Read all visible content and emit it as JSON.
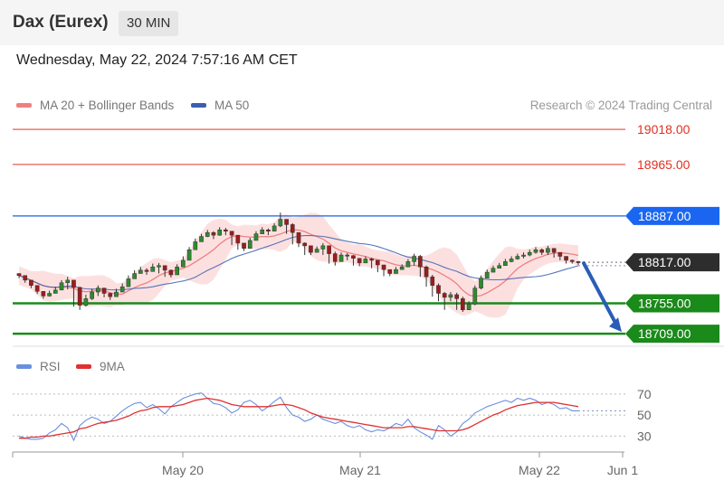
{
  "header": {
    "title": "Dax (Eurex)",
    "interval": "30 MIN"
  },
  "datetime": "Wednesday, May 22, 2024 7:57:16 AM CET",
  "legend": {
    "ma20": {
      "label": "MA 20 + Bollinger Bands",
      "color": "#f08080"
    },
    "ma50": {
      "label": "MA 50",
      "color": "#3a5fb0"
    }
  },
  "research": "Research © 2024 Trading Central",
  "rsi_legend": {
    "rsi": {
      "label": "RSI",
      "color": "#6b8fe0"
    },
    "ma9": {
      "label": "9MA",
      "color": "#e03030"
    }
  },
  "chart_data": [
    {
      "type": "candlestick",
      "title": "Dax (Eurex)",
      "interval": "30 MIN",
      "x_ticks": [
        "May 20",
        "May 21",
        "May 22",
        "Jun 1"
      ],
      "y_range": [
        18690,
        19040
      ],
      "levels": [
        {
          "value": 19018.0,
          "label": "19018.00",
          "kind": "resistance",
          "color": "#e8554e"
        },
        {
          "value": 18965.0,
          "label": "18965.00",
          "kind": "resistance",
          "color": "#e8554e"
        },
        {
          "value": 18887.0,
          "label": "18887.00",
          "kind": "pivot",
          "color": "#1f5fe0"
        },
        {
          "value": 18817.0,
          "label": "18817.00",
          "kind": "last",
          "color": "#333333"
        },
        {
          "value": 18755.0,
          "label": "18755.00",
          "kind": "support",
          "color": "#1a8a1a"
        },
        {
          "value": 18709.0,
          "label": "18709.00",
          "kind": "support",
          "color": "#1a8a1a"
        }
      ],
      "forecast": {
        "direction": "down",
        "target": 18709.0
      },
      "indicators": [
        "MA 20 + Bollinger Bands",
        "MA 50"
      ],
      "close": [
        18797,
        18790,
        18782,
        18773,
        18766,
        18770,
        18775,
        18786,
        18790,
        18779,
        18752,
        18762,
        18772,
        18778,
        18770,
        18765,
        18772,
        18780,
        18792,
        18800,
        18805,
        18803,
        18810,
        18812,
        18805,
        18798,
        18810,
        18820,
        18836,
        18848,
        18856,
        18862,
        18858,
        18866,
        18864,
        18858,
        18846,
        18838,
        18850,
        18860,
        18866,
        18864,
        18872,
        18882,
        18874,
        18862,
        18846,
        18842,
        18832,
        18837,
        18842,
        18830,
        18818,
        18828,
        18827,
        18823,
        18816,
        18822,
        18820,
        18813,
        18806,
        18800,
        18806,
        18810,
        18818,
        18826,
        18810,
        18795,
        18782,
        18770,
        18764,
        18768,
        18762,
        18745,
        18754,
        18778,
        18793,
        18802,
        18808,
        18812,
        18818,
        18822,
        18826,
        18828,
        18832,
        18836,
        18832,
        18838,
        18832,
        18826,
        18820,
        18818,
        18817
      ],
      "high": [
        18800,
        18795,
        18786,
        18778,
        18772,
        18774,
        18780,
        18790,
        18795,
        18790,
        18780,
        18768,
        18777,
        18782,
        18778,
        18771,
        18777,
        18785,
        18797,
        18805,
        18810,
        18808,
        18815,
        18816,
        18810,
        18806,
        18814,
        18826,
        18840,
        18853,
        18860,
        18866,
        18864,
        18870,
        18869,
        18864,
        18856,
        18845,
        18854,
        18864,
        18870,
        18868,
        18876,
        18892,
        18882,
        18876,
        18852,
        18847,
        18840,
        18841,
        18846,
        18842,
        18833,
        18832,
        18831,
        18828,
        18823,
        18826,
        18824,
        18820,
        18812,
        18806,
        18810,
        18814,
        18822,
        18830,
        18828,
        18812,
        18798,
        18785,
        18772,
        18772,
        18771,
        18765,
        18758,
        18782,
        18797,
        18806,
        18812,
        18816,
        18822,
        18826,
        18830,
        18832,
        18836,
        18840,
        18838,
        18842,
        18838,
        18832,
        18826,
        18821,
        18819
      ],
      "low": [
        18793,
        18786,
        18778,
        18769,
        18762,
        18765,
        18770,
        18782,
        18776,
        18750,
        18745,
        18750,
        18760,
        18766,
        18764,
        18760,
        18766,
        18775,
        18788,
        18796,
        18800,
        18798,
        18805,
        18800,
        18795,
        18794,
        18805,
        18816,
        18830,
        18842,
        18850,
        18855,
        18852,
        18857,
        18858,
        18843,
        18836,
        18834,
        18846,
        18856,
        18860,
        18858,
        18866,
        18870,
        18860,
        18844,
        18840,
        18828,
        18828,
        18833,
        18828,
        18815,
        18812,
        18822,
        18820,
        18812,
        18811,
        18816,
        18808,
        18802,
        18796,
        18796,
        18801,
        18806,
        18813,
        18812,
        18795,
        18780,
        18765,
        18758,
        18745,
        18758,
        18745,
        18742,
        18745,
        18752,
        18776,
        18796,
        18802,
        18808,
        18813,
        18817,
        18821,
        18823,
        18826,
        18830,
        18828,
        18828,
        18824,
        18820,
        18815,
        18815,
        18813
      ]
    },
    {
      "type": "line",
      "title": "RSI",
      "series": [
        {
          "name": "RSI",
          "values": [
            30,
            28,
            27,
            27,
            28,
            33,
            36,
            42,
            38,
            26,
            40,
            45,
            48,
            46,
            42,
            44,
            49,
            54,
            58,
            61,
            62,
            57,
            60,
            56,
            51,
            58,
            62,
            66,
            68,
            70,
            71,
            66,
            61,
            60,
            57,
            52,
            55,
            62,
            64,
            60,
            54,
            58,
            63,
            67,
            57,
            50,
            48,
            44,
            46,
            50,
            46,
            44,
            42,
            44,
            40,
            38,
            40,
            36,
            34,
            36,
            35,
            38,
            42,
            40,
            46,
            38,
            34,
            31,
            27,
            40,
            36,
            30,
            34,
            42,
            46,
            52,
            55,
            58,
            60,
            62,
            64,
            62,
            66,
            64,
            66,
            64,
            60,
            62,
            60,
            56,
            57,
            54,
            54
          ]
        },
        {
          "name": "9MA",
          "values": [
            28,
            28,
            29,
            29,
            30,
            30,
            31,
            32,
            33,
            34,
            37,
            38,
            40,
            42,
            43,
            44,
            45,
            47,
            49,
            52,
            54,
            55,
            57,
            58,
            58,
            58,
            59,
            60,
            62,
            64,
            65,
            66,
            65,
            64,
            62,
            60,
            59,
            58,
            58,
            58,
            58,
            58,
            59,
            60,
            60,
            59,
            57,
            55,
            52,
            50,
            48,
            47,
            46,
            45,
            44,
            43,
            42,
            41,
            40,
            39,
            38,
            38,
            38,
            38,
            39,
            39,
            38,
            37,
            36,
            35,
            35,
            35,
            35,
            36,
            38,
            41,
            44,
            47,
            50,
            52,
            55,
            57,
            59,
            60,
            61,
            62,
            62,
            62,
            62,
            61,
            60,
            59,
            58
          ]
        }
      ],
      "y_ticks": [
        70,
        50,
        30
      ]
    }
  ]
}
